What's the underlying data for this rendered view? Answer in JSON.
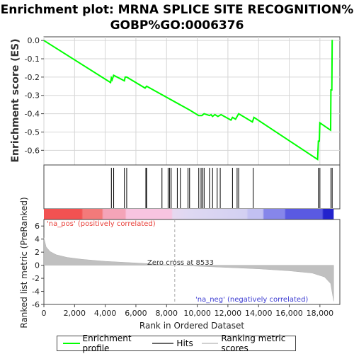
{
  "title_line1": "Enrichment plot: MRNA SPLICE SITE RECOGNITION%",
  "title_line2": "GOBP%GO:0006376",
  "chart_data": {
    "type": "line",
    "es_panel": {
      "ylabel": "Enrichment score (ES)",
      "ylim": [
        -0.68,
        0.02
      ],
      "yticks": [
        0.0,
        -0.1,
        -0.2,
        -0.3,
        -0.4,
        -0.5,
        -0.6
      ],
      "grid": true,
      "line_color": "#00ff00",
      "series": [
        {
          "x": 0,
          "y": 0.0
        },
        {
          "x": 4350,
          "y": -0.23
        },
        {
          "x": 4400,
          "y": -0.205
        },
        {
          "x": 4450,
          "y": -0.215
        },
        {
          "x": 4550,
          "y": -0.19
        },
        {
          "x": 5250,
          "y": -0.22
        },
        {
          "x": 5300,
          "y": -0.2
        },
        {
          "x": 5400,
          "y": -0.2
        },
        {
          "x": 6600,
          "y": -0.26
        },
        {
          "x": 6700,
          "y": -0.25
        },
        {
          "x": 9500,
          "y": -0.38
        },
        {
          "x": 10100,
          "y": -0.41
        },
        {
          "x": 10300,
          "y": -0.41
        },
        {
          "x": 10450,
          "y": -0.4
        },
        {
          "x": 10800,
          "y": -0.41
        },
        {
          "x": 10900,
          "y": -0.405
        },
        {
          "x": 11000,
          "y": -0.415
        },
        {
          "x": 11150,
          "y": -0.405
        },
        {
          "x": 11350,
          "y": -0.415
        },
        {
          "x": 11550,
          "y": -0.405
        },
        {
          "x": 12200,
          "y": -0.435
        },
        {
          "x": 12300,
          "y": -0.42
        },
        {
          "x": 12500,
          "y": -0.43
        },
        {
          "x": 12700,
          "y": -0.4
        },
        {
          "x": 13600,
          "y": -0.445
        },
        {
          "x": 13700,
          "y": -0.42
        },
        {
          "x": 17850,
          "y": -0.65
        },
        {
          "x": 17900,
          "y": -0.55
        },
        {
          "x": 17960,
          "y": -0.55
        },
        {
          "x": 18000,
          "y": -0.45
        },
        {
          "x": 18700,
          "y": -0.49
        },
        {
          "x": 18720,
          "y": -0.27
        },
        {
          "x": 18780,
          "y": -0.27
        },
        {
          "x": 18800,
          "y": 0.003
        }
      ]
    },
    "hits": [
      4400,
      4550,
      5250,
      5400,
      6650,
      6700,
      7700,
      8100,
      8200,
      8300,
      8700,
      8900,
      9400,
      9500,
      10100,
      10250,
      10350,
      10450,
      10800,
      11000,
      11300,
      11500,
      12300,
      12600,
      12700,
      13650,
      17900,
      18000,
      18720,
      18800
    ],
    "ranked_panel": {
      "ylabel": "Ranked list metric (PreRanked)",
      "xlabel": "Rank in Ordered Dataset",
      "ylim": [
        -6,
        7
      ],
      "yticks": [
        6,
        4,
        2,
        0,
        -2,
        -4,
        -6
      ],
      "xlim": [
        0,
        19300
      ],
      "xticks": [
        0,
        2000,
        4000,
        6000,
        8000,
        10000,
        12000,
        14000,
        16000,
        18000
      ],
      "xtick_labels": [
        "0",
        "2,000",
        "4,000",
        "6,000",
        "8,000",
        "10,000",
        "12,000",
        "14,000",
        "16,000",
        "18,000"
      ],
      "zero_cross": 8533,
      "n_genes": 18900,
      "profile": [
        {
          "x": 0,
          "y": 4.2
        },
        {
          "x": 150,
          "y": 2.8
        },
        {
          "x": 400,
          "y": 2.1
        },
        {
          "x": 800,
          "y": 1.6
        },
        {
          "x": 1500,
          "y": 1.2
        },
        {
          "x": 2500,
          "y": 0.9
        },
        {
          "x": 4000,
          "y": 0.6
        },
        {
          "x": 6000,
          "y": 0.35
        },
        {
          "x": 8533,
          "y": 0.0
        },
        {
          "x": 11000,
          "y": -0.25
        },
        {
          "x": 14000,
          "y": -0.55
        },
        {
          "x": 16000,
          "y": -0.85
        },
        {
          "x": 17500,
          "y": -1.2
        },
        {
          "x": 18300,
          "y": -1.8
        },
        {
          "x": 18700,
          "y": -2.8
        },
        {
          "x": 18900,
          "y": -5.5
        }
      ]
    },
    "annotations": {
      "pos": "'na_pos' (positively correlated)",
      "neg": "'na_neg' (negatively correlated)",
      "zero": "Zero cross at 8533"
    },
    "legend": [
      "Enrichment profile",
      "Hits",
      "Ranking metric scores"
    ],
    "colors": {
      "enrichment": "#00ff00",
      "hits": "#000000",
      "ranking": "#c8c8c8",
      "pos_text": "#e8403a",
      "neg_text": "#3b3bd1"
    }
  }
}
